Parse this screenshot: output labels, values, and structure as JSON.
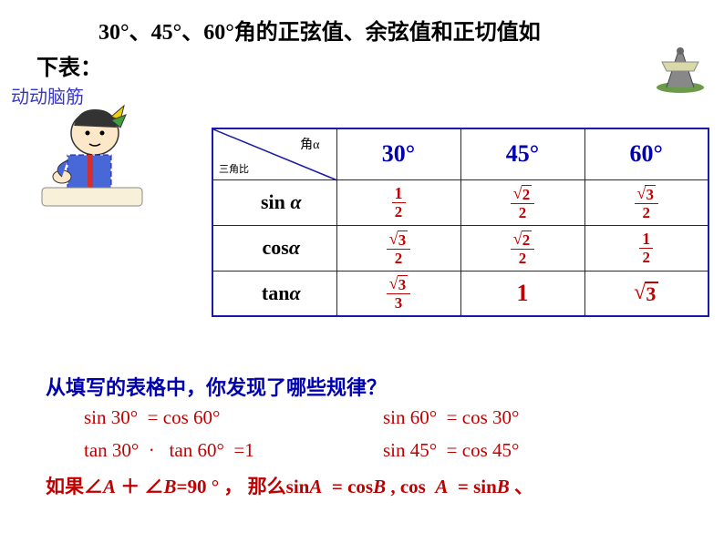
{
  "title_part1": "30°、45°、60°角的正弦值、余弦值和正切值如",
  "title_part2": "下表：",
  "brain_label": "动动脑筋",
  "table": {
    "corner_top": "角α",
    "corner_bottom": "三角比",
    "headers": [
      "30°",
      "45°",
      "60°"
    ],
    "rows": [
      {
        "fn": "sin",
        "alpha": "α"
      },
      {
        "fn": "cos",
        "alpha": "α"
      },
      {
        "fn": "tan",
        "alpha": "α"
      }
    ],
    "values": {
      "sin30": {
        "num": "1",
        "den": "2",
        "sqrt": false
      },
      "sin45": {
        "num": "2",
        "den": "2",
        "sqrt": true
      },
      "sin60": {
        "num": "3",
        "den": "2",
        "sqrt": true
      },
      "cos30": {
        "num": "3",
        "den": "2",
        "sqrt": true
      },
      "cos45": {
        "num": "2",
        "den": "2",
        "sqrt": true
      },
      "cos60": {
        "num": "1",
        "den": "2",
        "sqrt": false
      },
      "tan30": {
        "num": "3",
        "den": "3",
        "sqrt": true
      },
      "tan45": {
        "plain": "1"
      },
      "tan60": {
        "plain_sqrt": "3"
      }
    }
  },
  "question": "从填写的表格中，你发现了哪些规律？",
  "eq1": "sin 30°  = cos 60°",
  "eq2": "sin 60°  = cos 30°",
  "eq3": "tan 30°  ·   tan 60°  =1",
  "eq4": "sin 45°  = cos 45°",
  "rule_p1": "如果∠",
  "rule_A": "A",
  "rule_plus": " ＋ ∠",
  "rule_B": "B",
  "rule_eq": "=90 ° ， 那么sin",
  "rule_A2": "A",
  "rule_mid": "  = cos",
  "rule_B2": "B",
  "rule_mid2": " , cos  ",
  "rule_A3": "A",
  "rule_mid3": "  = sin",
  "rule_B3": "B",
  "rule_end": " 、",
  "colors": {
    "border": "#1a1aa8",
    "header_text": "#0000b0",
    "value_text": "#c00000",
    "brain_text": "#3838c8"
  }
}
